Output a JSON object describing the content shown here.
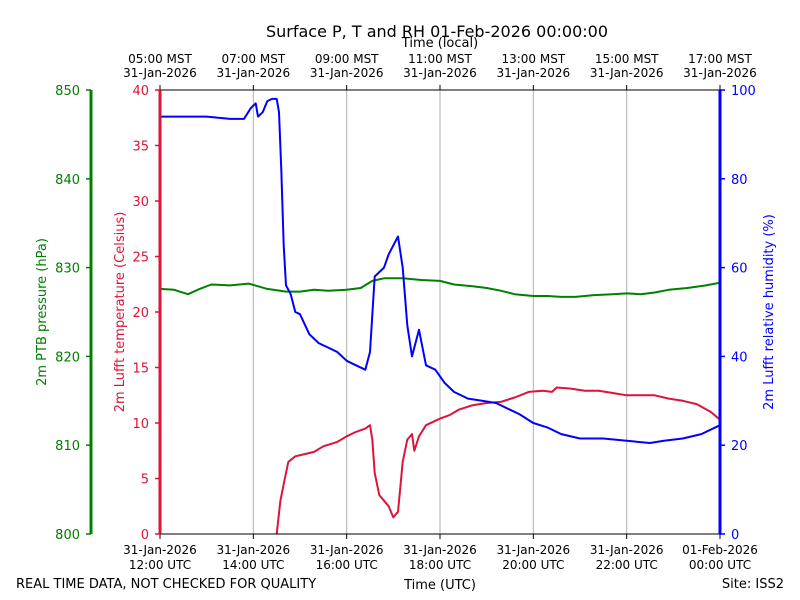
{
  "chart_data": {
    "type": "line",
    "title": "Surface P, T and RH 01-Feb-2026 00:00:00",
    "top_axis_label": "Time (local)",
    "xlabel": "Time (UTC)",
    "footer_left": "REAL TIME DATA, NOT CHECKED FOR QUALITY",
    "footer_right": "Site: ISS2",
    "x_range": [
      "2026-01-31 12:00",
      "2026-02-01 00:00"
    ],
    "bottom_ticks": [
      {
        "hour": 12,
        "line1": "31-Jan-2026",
        "line2": "12:00 UTC"
      },
      {
        "hour": 14,
        "line1": "31-Jan-2026",
        "line2": "14:00 UTC"
      },
      {
        "hour": 16,
        "line1": "31-Jan-2026",
        "line2": "16:00 UTC"
      },
      {
        "hour": 18,
        "line1": "31-Jan-2026",
        "line2": "18:00 UTC"
      },
      {
        "hour": 20,
        "line1": "31-Jan-2026",
        "line2": "20:00 UTC"
      },
      {
        "hour": 22,
        "line1": "31-Jan-2026",
        "line2": "22:00 UTC"
      },
      {
        "hour": 24,
        "line1": "01-Feb-2026",
        "line2": "00:00 UTC"
      }
    ],
    "top_ticks": [
      {
        "hour": 12,
        "line1": "05:00 MST",
        "line2": "31-Jan-2026"
      },
      {
        "hour": 14,
        "line1": "07:00 MST",
        "line2": "31-Jan-2026"
      },
      {
        "hour": 16,
        "line1": "09:00 MST",
        "line2": "31-Jan-2026"
      },
      {
        "hour": 18,
        "line1": "11:00 MST",
        "line2": "31-Jan-2026"
      },
      {
        "hour": 20,
        "line1": "13:00 MST",
        "line2": "31-Jan-2026"
      },
      {
        "hour": 22,
        "line1": "15:00 MST",
        "line2": "31-Jan-2026"
      },
      {
        "hour": 24,
        "line1": "17:00 MST",
        "line2": "31-Jan-2026"
      }
    ],
    "grid": "vertical",
    "axes": {
      "pressure": {
        "label": "2m PTB pressure (hPa)",
        "range": [
          800,
          850
        ],
        "ticks": [
          800,
          810,
          820,
          830,
          840,
          850
        ],
        "color": "#008000"
      },
      "temperature": {
        "label": "2m Lufft temperature (Celsius)",
        "range": [
          0,
          40
        ],
        "ticks": [
          0,
          5,
          10,
          15,
          20,
          25,
          30,
          35,
          40
        ],
        "color": "#dc143c"
      },
      "humidity": {
        "label": "2m Lufft relative humidity (%)",
        "range": [
          0,
          100
        ],
        "ticks": [
          0,
          20,
          40,
          60,
          80,
          100
        ],
        "color": "#0000ff"
      }
    },
    "series": [
      {
        "axis": "pressure",
        "color": "#008000",
        "points": [
          [
            12.0,
            827.6
          ],
          [
            12.3,
            827.5
          ],
          [
            12.6,
            827.0
          ],
          [
            12.85,
            827.6
          ],
          [
            13.1,
            828.1
          ],
          [
            13.5,
            828.0
          ],
          [
            13.9,
            828.2
          ],
          [
            14.3,
            827.6
          ],
          [
            14.7,
            827.3
          ],
          [
            15.0,
            827.3
          ],
          [
            15.3,
            827.5
          ],
          [
            15.6,
            827.4
          ],
          [
            16.0,
            827.5
          ],
          [
            16.3,
            827.7
          ],
          [
            16.55,
            828.5
          ],
          [
            16.8,
            828.8
          ],
          [
            17.2,
            828.8
          ],
          [
            17.6,
            828.6
          ],
          [
            18.0,
            828.5
          ],
          [
            18.3,
            828.1
          ],
          [
            18.7,
            827.9
          ],
          [
            19.0,
            827.7
          ],
          [
            19.3,
            827.4
          ],
          [
            19.6,
            827.0
          ],
          [
            20.0,
            826.8
          ],
          [
            20.3,
            826.8
          ],
          [
            20.6,
            826.7
          ],
          [
            20.9,
            826.7
          ],
          [
            21.3,
            826.9
          ],
          [
            21.7,
            827.0
          ],
          [
            22.0,
            827.1
          ],
          [
            22.3,
            827.0
          ],
          [
            22.6,
            827.2
          ],
          [
            22.9,
            827.5
          ],
          [
            23.3,
            827.7
          ],
          [
            23.7,
            828.0
          ],
          [
            24.0,
            828.3
          ]
        ]
      },
      {
        "axis": "temperature",
        "color": "#dc143c",
        "points": [
          [
            14.5,
            0
          ],
          [
            14.58,
            3.0
          ],
          [
            14.65,
            4.5
          ],
          [
            14.75,
            6.5
          ],
          [
            14.9,
            7.0
          ],
          [
            15.1,
            7.2
          ],
          [
            15.3,
            7.4
          ],
          [
            15.5,
            7.9
          ],
          [
            15.8,
            8.3
          ],
          [
            16.0,
            8.8
          ],
          [
            16.2,
            9.2
          ],
          [
            16.4,
            9.5
          ],
          [
            16.5,
            9.8
          ],
          [
            16.55,
            8.5
          ],
          [
            16.6,
            5.5
          ],
          [
            16.7,
            3.5
          ],
          [
            16.8,
            3.0
          ],
          [
            16.9,
            2.5
          ],
          [
            17.0,
            1.5
          ],
          [
            17.1,
            2.0
          ],
          [
            17.2,
            6.5
          ],
          [
            17.3,
            8.5
          ],
          [
            17.4,
            9.0
          ],
          [
            17.45,
            7.5
          ],
          [
            17.55,
            8.8
          ],
          [
            17.7,
            9.8
          ],
          [
            17.9,
            10.2
          ],
          [
            18.0,
            10.4
          ],
          [
            18.2,
            10.7
          ],
          [
            18.4,
            11.2
          ],
          [
            18.7,
            11.6
          ],
          [
            19.0,
            11.8
          ],
          [
            19.3,
            11.9
          ],
          [
            19.6,
            12.3
          ],
          [
            19.9,
            12.8
          ],
          [
            20.2,
            12.9
          ],
          [
            20.4,
            12.8
          ],
          [
            20.5,
            13.2
          ],
          [
            20.8,
            13.1
          ],
          [
            21.1,
            12.9
          ],
          [
            21.4,
            12.9
          ],
          [
            21.7,
            12.7
          ],
          [
            22.0,
            12.5
          ],
          [
            22.3,
            12.5
          ],
          [
            22.6,
            12.5
          ],
          [
            22.9,
            12.2
          ],
          [
            23.2,
            12.0
          ],
          [
            23.5,
            11.7
          ],
          [
            23.8,
            11.0
          ],
          [
            24.0,
            10.3
          ]
        ]
      },
      {
        "axis": "humidity",
        "color": "#0000ff",
        "points": [
          [
            12.0,
            94.0
          ],
          [
            12.5,
            94.0
          ],
          [
            13.0,
            94.0
          ],
          [
            13.5,
            93.5
          ],
          [
            13.8,
            93.5
          ],
          [
            13.95,
            96.0
          ],
          [
            14.05,
            97.0
          ],
          [
            14.1,
            94.0
          ],
          [
            14.2,
            95.0
          ],
          [
            14.3,
            97.5
          ],
          [
            14.4,
            98.0
          ],
          [
            14.5,
            98.0
          ],
          [
            14.55,
            95.0
          ],
          [
            14.6,
            82.0
          ],
          [
            14.65,
            65.0
          ],
          [
            14.7,
            56.0
          ],
          [
            14.8,
            54.0
          ],
          [
            14.9,
            50.0
          ],
          [
            15.0,
            49.5
          ],
          [
            15.2,
            45.0
          ],
          [
            15.4,
            43.0
          ],
          [
            15.6,
            42.0
          ],
          [
            15.8,
            41.0
          ],
          [
            16.0,
            39.0
          ],
          [
            16.2,
            38.0
          ],
          [
            16.4,
            37.0
          ],
          [
            16.5,
            41.0
          ],
          [
            16.6,
            58.0
          ],
          [
            16.8,
            60.0
          ],
          [
            16.9,
            63.0
          ],
          [
            17.0,
            65.0
          ],
          [
            17.1,
            67.0
          ],
          [
            17.2,
            60.0
          ],
          [
            17.3,
            47.0
          ],
          [
            17.4,
            40.0
          ],
          [
            17.55,
            46.0
          ],
          [
            17.7,
            38.0
          ],
          [
            17.9,
            37.0
          ],
          [
            18.1,
            34.0
          ],
          [
            18.3,
            32.0
          ],
          [
            18.6,
            30.5
          ],
          [
            18.9,
            30.0
          ],
          [
            19.2,
            29.5
          ],
          [
            19.5,
            28.0
          ],
          [
            19.7,
            27.0
          ],
          [
            20.0,
            25.0
          ],
          [
            20.3,
            24.0
          ],
          [
            20.6,
            22.5
          ],
          [
            21.0,
            21.5
          ],
          [
            21.5,
            21.5
          ],
          [
            22.0,
            21.0
          ],
          [
            22.5,
            20.5
          ],
          [
            22.8,
            21.0
          ],
          [
            23.2,
            21.5
          ],
          [
            23.6,
            22.5
          ],
          [
            24.0,
            24.5
          ]
        ]
      }
    ]
  }
}
